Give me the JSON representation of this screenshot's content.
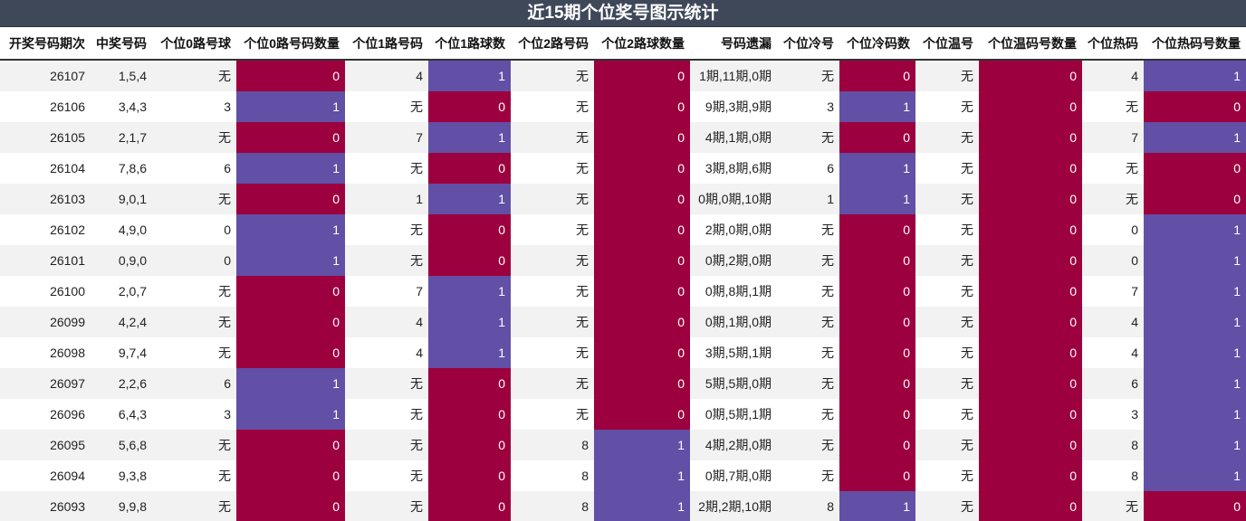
{
  "title": "近15期个位奖号图示统计",
  "table": {
    "header": [
      "开奖号码期次",
      "中奖号码",
      "个位0路号球",
      "个位0路号码数量",
      "个位1路号码",
      "个位1路球数",
      "个位2路号码",
      "个位2路球数量",
      "号码遗漏",
      "个位冷号",
      "个位冷码数",
      "个位温号",
      "个位温码号数量",
      "个位热码",
      "个位热码号数量"
    ],
    "cell_colors": [
      "#9c003e",
      "#6150a6"
    ],
    "rows": [
      [
        "26107",
        "1,5,4",
        "无",
        0,
        "4",
        1,
        "无",
        0,
        "1期,11期,0期",
        "无",
        0,
        "无",
        0,
        "4",
        1
      ],
      [
        "26106",
        "3,4,3",
        "3",
        1,
        "无",
        0,
        "无",
        0,
        "9期,3期,9期",
        "3",
        1,
        "无",
        0,
        "无",
        0
      ],
      [
        "26105",
        "2,1,7",
        "无",
        0,
        "7",
        1,
        "无",
        0,
        "4期,1期,0期",
        "无",
        0,
        "无",
        0,
        "7",
        1
      ],
      [
        "26104",
        "7,8,6",
        "6",
        1,
        "无",
        0,
        "无",
        0,
        "3期,8期,6期",
        "6",
        1,
        "无",
        0,
        "无",
        0
      ],
      [
        "26103",
        "9,0,1",
        "无",
        0,
        "1",
        1,
        "无",
        0,
        "0期,0期,10期",
        "1",
        1,
        "无",
        0,
        "无",
        0
      ],
      [
        "26102",
        "4,9,0",
        "0",
        1,
        "无",
        0,
        "无",
        0,
        "2期,0期,0期",
        "无",
        0,
        "无",
        0,
        "0",
        1
      ],
      [
        "26101",
        "0,9,0",
        "0",
        1,
        "无",
        0,
        "无",
        0,
        "0期,2期,0期",
        "无",
        0,
        "无",
        0,
        "0",
        1
      ],
      [
        "26100",
        "2,0,7",
        "无",
        0,
        "7",
        1,
        "无",
        0,
        "0期,8期,1期",
        "无",
        0,
        "无",
        0,
        "7",
        1
      ],
      [
        "26099",
        "4,2,4",
        "无",
        0,
        "4",
        1,
        "无",
        0,
        "0期,1期,0期",
        "无",
        0,
        "无",
        0,
        "4",
        1
      ],
      [
        "26098",
        "9,7,4",
        "无",
        0,
        "4",
        1,
        "无",
        0,
        "3期,5期,1期",
        "无",
        0,
        "无",
        0,
        "4",
        1
      ],
      [
        "26097",
        "2,2,6",
        "6",
        1,
        "无",
        0,
        "无",
        0,
        "5期,5期,0期",
        "无",
        0,
        "无",
        0,
        "6",
        1
      ],
      [
        "26096",
        "6,4,3",
        "3",
        1,
        "无",
        0,
        "无",
        0,
        "0期,5期,1期",
        "无",
        0,
        "无",
        0,
        "3",
        1
      ],
      [
        "26095",
        "5,6,8",
        "无",
        0,
        "无",
        0,
        "8",
        1,
        "4期,2期,0期",
        "无",
        0,
        "无",
        0,
        "8",
        1
      ],
      [
        "26094",
        "9,3,8",
        "无",
        0,
        "无",
        0,
        "8",
        1,
        "0期,7期,0期",
        "无",
        0,
        "无",
        0,
        "8",
        1
      ],
      [
        "26093",
        "9,9,8",
        "无",
        0,
        "无",
        0,
        "8",
        1,
        "2期,2期,10期",
        "8",
        1,
        "无",
        0,
        "无",
        0
      ]
    ]
  }
}
